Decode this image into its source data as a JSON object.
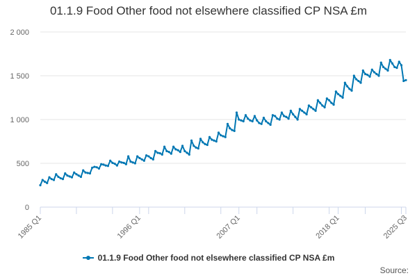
{
  "colors": {
    "series": "#0077b3",
    "grid": "#e6e6e6",
    "axis": "#ccd6eb"
  },
  "legend_label": "01.1.9 Food Other food not elsewhere classified CP NSA £m",
  "source_label": "Source:",
  "chart_data": {
    "type": "line",
    "title": "01.1.9 Food Other food not elsewhere classified CP NSA £m",
    "xlabel": "",
    "ylabel": "",
    "ylim": [
      0,
      2000
    ],
    "y_ticks": [
      0,
      500,
      1000,
      1500,
      2000
    ],
    "y_tick_labels": [
      "0",
      "500",
      "1 000",
      "1 500",
      "2 000"
    ],
    "x_tick_labels": [
      "1985 Q1",
      "1996 Q1",
      "2007 Q1",
      "2018 Q1",
      "2025 Q3"
    ],
    "x_tick_positions": [
      0,
      44,
      88,
      132,
      162
    ],
    "grid": true,
    "legend": "bottom",
    "series": [
      {
        "name": "01.1.9 Food Other food not elsewhere classified CP NSA £m",
        "x": [
          "1985 Q1",
          "1985 Q2",
          "1985 Q3",
          "1985 Q4",
          "1986 Q1",
          "1986 Q2",
          "1986 Q3",
          "1986 Q4",
          "1987 Q1",
          "1987 Q2",
          "1987 Q3",
          "1987 Q4",
          "1988 Q1",
          "1988 Q2",
          "1988 Q3",
          "1988 Q4",
          "1989 Q1",
          "1989 Q2",
          "1989 Q3",
          "1989 Q4",
          "1990 Q1",
          "1990 Q2",
          "1990 Q3",
          "1990 Q4",
          "1991 Q1",
          "1991 Q2",
          "1991 Q3",
          "1991 Q4",
          "1992 Q1",
          "1992 Q2",
          "1992 Q3",
          "1992 Q4",
          "1993 Q1",
          "1993 Q2",
          "1993 Q3",
          "1993 Q4",
          "1994 Q1",
          "1994 Q2",
          "1994 Q3",
          "1994 Q4",
          "1995 Q1",
          "1995 Q2",
          "1995 Q3",
          "1995 Q4",
          "1996 Q1",
          "1996 Q2",
          "1996 Q3",
          "1996 Q4",
          "1997 Q1",
          "1997 Q2",
          "1997 Q3",
          "1997 Q4",
          "1998 Q1",
          "1998 Q2",
          "1998 Q3",
          "1998 Q4",
          "1999 Q1",
          "1999 Q2",
          "1999 Q3",
          "1999 Q4",
          "2000 Q1",
          "2000 Q2",
          "2000 Q3",
          "2000 Q4",
          "2001 Q1",
          "2001 Q2",
          "2001 Q3",
          "2001 Q4",
          "2002 Q1",
          "2002 Q2",
          "2002 Q3",
          "2002 Q4",
          "2003 Q1",
          "2003 Q2",
          "2003 Q3",
          "2003 Q4",
          "2004 Q1",
          "2004 Q2",
          "2004 Q3",
          "2004 Q4",
          "2005 Q1",
          "2005 Q2",
          "2005 Q3",
          "2005 Q4",
          "2006 Q1",
          "2006 Q2",
          "2006 Q3",
          "2006 Q4",
          "2007 Q1",
          "2007 Q2",
          "2007 Q3",
          "2007 Q4",
          "2008 Q1",
          "2008 Q2",
          "2008 Q3",
          "2008 Q4",
          "2009 Q1",
          "2009 Q2",
          "2009 Q3",
          "2009 Q4",
          "2010 Q1",
          "2010 Q2",
          "2010 Q3",
          "2010 Q4",
          "2011 Q1",
          "2011 Q2",
          "2011 Q3",
          "2011 Q4",
          "2012 Q1",
          "2012 Q2",
          "2012 Q3",
          "2012 Q4",
          "2013 Q1",
          "2013 Q2",
          "2013 Q3",
          "2013 Q4",
          "2014 Q1",
          "2014 Q2",
          "2014 Q3",
          "2014 Q4",
          "2015 Q1",
          "2015 Q2",
          "2015 Q3",
          "2015 Q4",
          "2016 Q1",
          "2016 Q2",
          "2016 Q3",
          "2016 Q4",
          "2017 Q1",
          "2017 Q2",
          "2017 Q3",
          "2017 Q4",
          "2018 Q1",
          "2018 Q2",
          "2018 Q3",
          "2018 Q4",
          "2019 Q1",
          "2019 Q2",
          "2019 Q3",
          "2019 Q4",
          "2020 Q1",
          "2020 Q2",
          "2020 Q3",
          "2020 Q4",
          "2021 Q1",
          "2021 Q2",
          "2021 Q3",
          "2021 Q4",
          "2022 Q1",
          "2022 Q2",
          "2022 Q3",
          "2022 Q4",
          "2023 Q1",
          "2023 Q2",
          "2023 Q3",
          "2023 Q4",
          "2024 Q1",
          "2024 Q2",
          "2024 Q3",
          "2024 Q4",
          "2025 Q1",
          "2025 Q2",
          "2025 Q3"
        ],
        "values": [
          250,
          310,
          290,
          275,
          340,
          320,
          310,
          375,
          345,
          330,
          320,
          385,
          360,
          350,
          340,
          395,
          375,
          360,
          345,
          420,
          395,
          390,
          385,
          450,
          460,
          455,
          440,
          490,
          485,
          475,
          470,
          530,
          505,
          495,
          475,
          520,
          510,
          505,
          490,
          580,
          520,
          510,
          500,
          580,
          560,
          545,
          530,
          590,
          580,
          560,
          545,
          640,
          620,
          615,
          600,
          690,
          640,
          630,
          610,
          690,
          660,
          650,
          630,
          700,
          640,
          620,
          600,
          760,
          700,
          680,
          670,
          780,
          740,
          720,
          710,
          800,
          770,
          760,
          750,
          850,
          820,
          810,
          800,
          950,
          900,
          880,
          870,
          1080,
          1000,
          990,
          980,
          1050,
          1010,
          990,
          980,
          1040,
          990,
          960,
          950,
          1020,
          980,
          960,
          940,
          1050,
          1040,
          1010,
          1000,
          1080,
          1040,
          1030,
          1010,
          1100,
          1060,
          1030,
          1000,
          1120,
          1100,
          1080,
          1060,
          1160,
          1140,
          1120,
          1100,
          1220,
          1190,
          1160,
          1140,
          1240,
          1220,
          1190,
          1170,
          1320,
          1290,
          1270,
          1250,
          1420,
          1380,
          1350,
          1330,
          1500,
          1460,
          1440,
          1420,
          1560,
          1520,
          1510,
          1490,
          1570,
          1540,
          1520,
          1500,
          1650,
          1600,
          1580,
          1560,
          1680,
          1640,
          1600,
          1590,
          1660,
          1620,
          1440,
          1450
        ]
      }
    ]
  }
}
